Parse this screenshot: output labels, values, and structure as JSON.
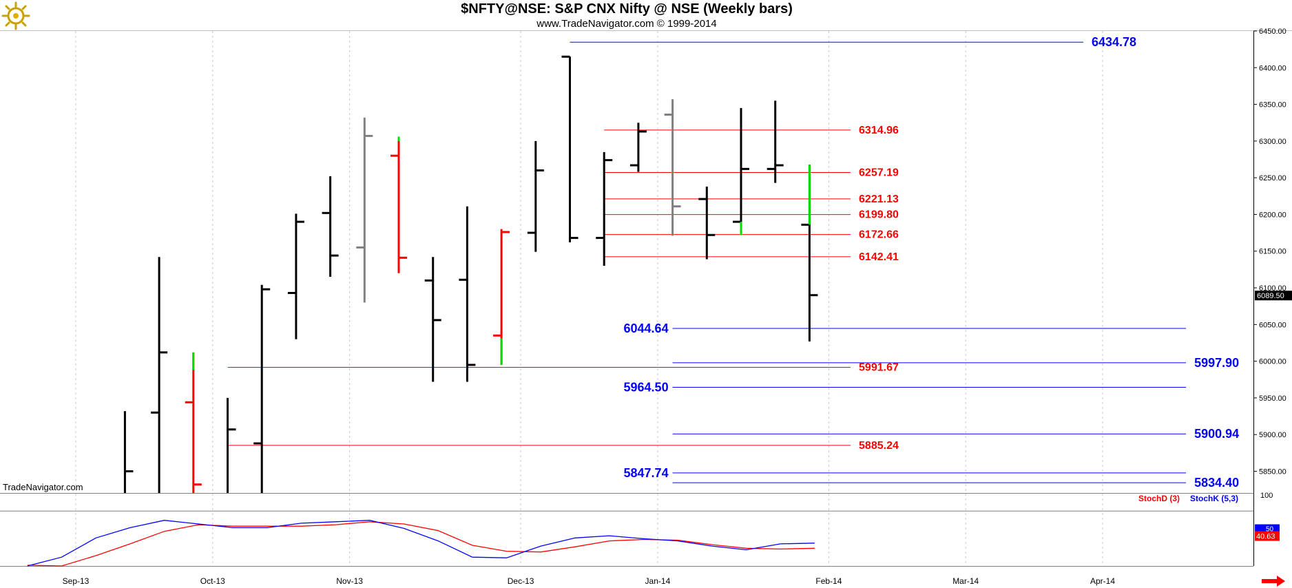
{
  "header": {
    "title": "$NFTY@NSE:  S&P CNX Nifty @ NSE  (Weekly bars)",
    "subtitle": "www.TradeNavigator.com © 1999-2014"
  },
  "watermark": "TradeNavigator.com",
  "indicator": {
    "stochd_label": "StochD (3)",
    "stochk_label": "StochK (5,3)",
    "stochd_color": "#ff0000",
    "stochk_color": "#0000ff",
    "top_label": "100",
    "stochk_badge": "50",
    "stochd_badge": "40.63",
    "stochk": [
      0,
      12,
      38,
      52,
      62,
      57,
      52,
      52,
      58,
      60,
      62,
      51,
      34,
      12,
      11,
      27,
      38,
      41,
      37,
      34,
      27,
      22,
      30,
      31
    ],
    "stochd": [
      1,
      0,
      14,
      30,
      47,
      56,
      54,
      54,
      54,
      56,
      60,
      57,
      48,
      28,
      20,
      19,
      26,
      34,
      36,
      35,
      29,
      24,
      23,
      24
    ]
  },
  "chart_data": {
    "type": "ohlc",
    "title": "$NFTY@NSE:  S&P CNX Nifty @ NSE  (Weekly bars)",
    "ylim": [
      5800,
      6460
    ],
    "y_ticks": [
      "6450.00",
      "6400.00",
      "6350.00",
      "6300.00",
      "6250.00",
      "6200.00",
      "6150.00",
      "6100.00",
      "6050.00",
      "6000.00",
      "5950.00",
      "5900.00",
      "5850.00"
    ],
    "x_ticks": [
      "Sep-13",
      "Oct-13",
      "Nov-13",
      "Dec-13",
      "Jan-14",
      "Feb-14",
      "Mar-14",
      "Apr-14"
    ],
    "last_price": "6089.50",
    "bars": [
      {
        "week": 3,
        "open": 5730,
        "high": 5932,
        "low": 5700,
        "close": 5850,
        "color": "#000000"
      },
      {
        "week": 4,
        "open": 5930,
        "high": 6142,
        "low": 5800,
        "close": 6012,
        "color": "#000000"
      },
      {
        "week": 5,
        "open": 5944,
        "high": 6012,
        "low": 5700,
        "close": 5832,
        "color": "#ff0000"
      },
      {
        "week": 6,
        "open": 5700,
        "high": 5950,
        "low": 5680,
        "close": 5907,
        "color": "#000000"
      },
      {
        "week": 7,
        "open": 5888,
        "high": 6104,
        "low": 5820,
        "close": 6098,
        "color": "#000000"
      },
      {
        "week": 8,
        "open": 6093,
        "high": 6201,
        "low": 6030,
        "close": 6190,
        "color": "#000000"
      },
      {
        "week": 9,
        "open": 6202,
        "high": 6252,
        "low": 6115,
        "close": 6144,
        "color": "#000000"
      },
      {
        "week": 10,
        "open": 6155,
        "high": 6332,
        "low": 6080,
        "close": 6307,
        "color": "#808080"
      },
      {
        "week": 11,
        "open": 6280,
        "high": 6306,
        "low": 6120,
        "close": 6141,
        "color": "#ff0000"
      },
      {
        "week": 12,
        "open": 6110,
        "high": 6142,
        "low": 5972,
        "close": 6056,
        "color": "#000000"
      },
      {
        "week": 13,
        "open": 6111,
        "high": 6211,
        "low": 5972,
        "close": 5995,
        "color": "#000000"
      },
      {
        "week": 14,
        "open": 6035,
        "high": 6180,
        "low": 5995,
        "close": 6176,
        "color": "#ff0000"
      },
      {
        "week": 15,
        "open": 6175,
        "high": 6300,
        "low": 6149,
        "close": 6260,
        "color": "#000000"
      },
      {
        "week": 16,
        "open": 6415,
        "high": 6415,
        "low": 6162,
        "close": 6168,
        "color": "#000000"
      },
      {
        "week": 17,
        "open": 6168,
        "high": 6285,
        "low": 6130,
        "close": 6274,
        "color": "#000000"
      },
      {
        "week": 18,
        "open": 6267,
        "high": 6325,
        "low": 6258,
        "close": 6313,
        "color": "#000000"
      },
      {
        "week": 19,
        "open": 6336,
        "high": 6357,
        "low": 6171,
        "close": 6211,
        "color": "#808080"
      },
      {
        "week": 20,
        "open": 6221,
        "high": 6238,
        "low": 6139,
        "close": 6172,
        "color": "#000000"
      },
      {
        "week": 21,
        "open": 6190,
        "high": 6345,
        "low": 6172,
        "close": 6262,
        "color": "#000000"
      },
      {
        "week": 22,
        "open": 6262,
        "high": 6355,
        "low": 6243,
        "close": 6267,
        "color": "#000000"
      },
      {
        "week": 23,
        "open": 6186,
        "high": 6268,
        "low": 6027,
        "close": 6090,
        "color": "#000000"
      }
    ],
    "bar_highlights": [
      {
        "week": 5,
        "from": 5988,
        "to": 6012,
        "color": "#00dd00"
      },
      {
        "week": 11,
        "from": 6300,
        "to": 6306,
        "color": "#00dd00"
      },
      {
        "week": 14,
        "from": 5995,
        "to": 6031,
        "color": "#00dd00"
      },
      {
        "week": 21,
        "from": 6172,
        "to": 6190,
        "color": "#00dd00"
      },
      {
        "week": 23,
        "from": 6186,
        "to": 6268,
        "color": "#00dd00"
      }
    ],
    "levels": [
      {
        "value": 6434.78,
        "label": "6434.78",
        "color": "#0000ff",
        "from_week": 16,
        "to_week": 31,
        "label_side": "right"
      },
      {
        "value": 6314.96,
        "label": "6314.96",
        "color": "#ff0000",
        "from_week": 17,
        "to_week": 24.2,
        "label_side": "right"
      },
      {
        "value": 6257.19,
        "label": "6257.19",
        "color": "#ff0000",
        "from_week": 17,
        "to_week": 24.2,
        "label_side": "right"
      },
      {
        "value": 6221.13,
        "label": "6221.13",
        "color": "#ff0000",
        "from_week": 17,
        "to_week": 24.2,
        "label_side": "right"
      },
      {
        "value": 6199.8,
        "label": "6199.80",
        "color": "#ff0000",
        "from_week": 17,
        "to_week": 24.2,
        "label_side": "right"
      },
      {
        "value": 6172.66,
        "label": "6172.66",
        "color": "#ff0000",
        "from_week": 17,
        "to_week": 24.2,
        "label_side": "right"
      },
      {
        "value": 6142.41,
        "label": "6142.41",
        "color": "#ff0000",
        "from_week": 17,
        "to_week": 24.2,
        "label_side": "right"
      },
      {
        "value": 6044.64,
        "label": "6044.64",
        "color": "#0000ff",
        "from_week": 19,
        "to_week": 34,
        "label_side": "left"
      },
      {
        "value": 5997.9,
        "label": "5997.90",
        "color": "#0000ff",
        "from_week": 19,
        "to_week": 34,
        "label_side": "right"
      },
      {
        "value": 5991.67,
        "label": "5991.67",
        "color": "#ff0000",
        "from_week": 6,
        "to_week": 24.2,
        "label_side": "right"
      },
      {
        "value": 5964.5,
        "label": "5964.50",
        "color": "#0000ff",
        "from_week": 19,
        "to_week": 34,
        "label_side": "left"
      },
      {
        "value": 5900.94,
        "label": "5900.94",
        "color": "#0000ff",
        "from_week": 19,
        "to_week": 34,
        "label_side": "right"
      },
      {
        "value": 5885.24,
        "label": "5885.24",
        "color": "#ff0000",
        "from_week": 6,
        "to_week": 24.2,
        "label_side": "right"
      },
      {
        "value": 5847.74,
        "label": "5847.74",
        "color": "#0000ff",
        "from_week": 19,
        "to_week": 34,
        "label_side": "left"
      },
      {
        "value": 5834.4,
        "label": "5834.40",
        "color": "#0000ff",
        "from_week": 19,
        "to_week": 34,
        "label_side": "right"
      }
    ]
  }
}
